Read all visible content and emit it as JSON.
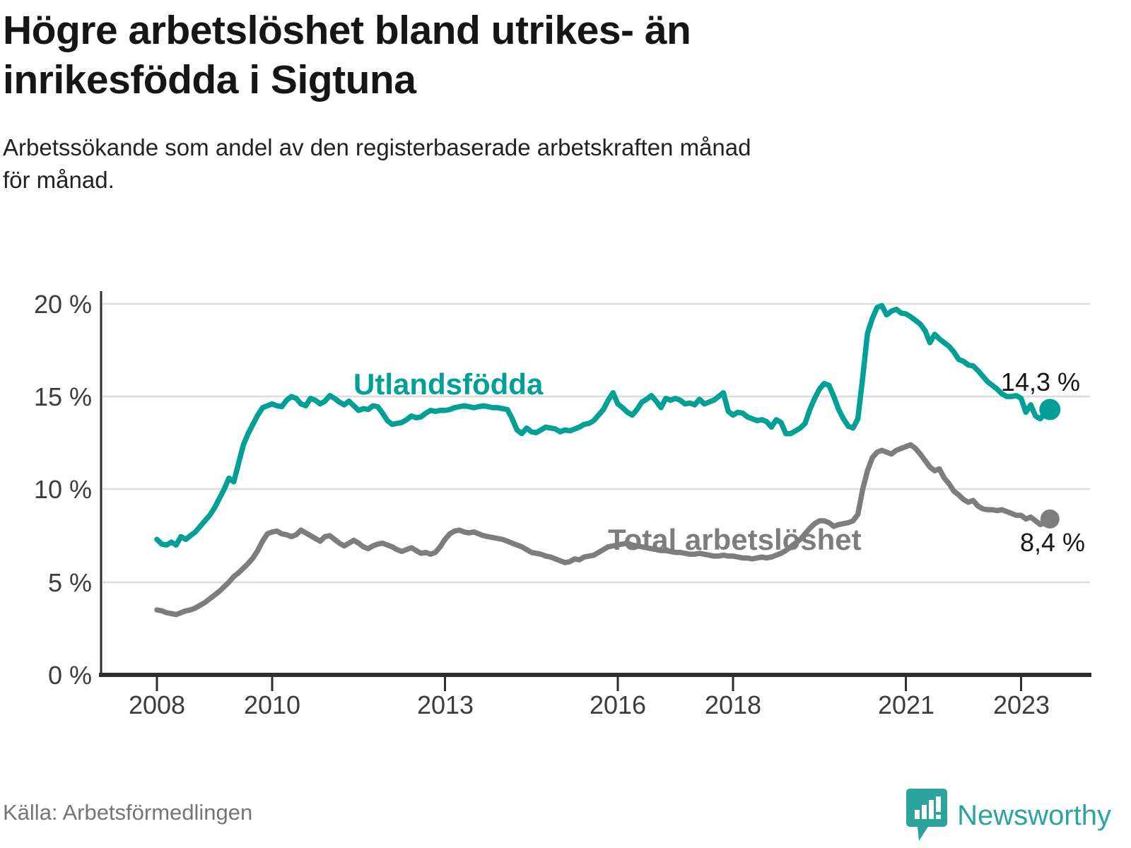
{
  "header": {
    "title_lines": [
      "Högre arbetslöshet bland utrikes- än",
      "inrikesfödda i Sigtuna"
    ],
    "subtitle_lines": [
      "Arbetssökande som andel av den registerbaserade arbetskraften månad",
      "för månad."
    ]
  },
  "footer": {
    "source": "Källa: Arbetsförmedlingen",
    "brand": "Newsworthy"
  },
  "colors": {
    "teal_line": "#00a096",
    "gray_line": "#7d7d7d",
    "brand_teal": "#2ca49e",
    "gridline": "#dcdcdc",
    "axis": "#2e2e2e"
  },
  "chart_data": {
    "type": "line",
    "title": "Högre arbetslöshet bland utrikes- än inrikesfödda i Sigtuna",
    "subtitle": "Arbetssökande som andel av den registerbaserade arbetskraften månad för månad.",
    "x_unit": "month",
    "x_start": "2008-01",
    "x_end": "2023-07",
    "ylim": [
      0,
      20
    ],
    "grid": "horizontal",
    "y_ticks": [
      {
        "label": "0 %",
        "value": 0
      },
      {
        "label": "5 %",
        "value": 5
      },
      {
        "label": "10 %",
        "value": 10
      },
      {
        "label": "15 %",
        "value": 15
      },
      {
        "label": "20 %",
        "value": 20
      }
    ],
    "x_ticks": [
      {
        "label": "2008",
        "year": 2008
      },
      {
        "label": "2010",
        "year": 2010
      },
      {
        "label": "2013",
        "year": 2013
      },
      {
        "label": "2016",
        "year": 2016
      },
      {
        "label": "2018",
        "year": 2018
      },
      {
        "label": "2021",
        "year": 2021
      },
      {
        "label": "2023",
        "year": 2023
      }
    ],
    "series": [
      {
        "name": "Utlandsfödda",
        "color": "#00a096",
        "end_label": "14,3 %",
        "end_value": 14.3,
        "values": [
          7.3,
          7.05,
          7.0,
          7.15,
          7.0,
          7.45,
          7.3,
          7.5,
          7.7,
          8.0,
          8.3,
          8.6,
          9.0,
          9.5,
          10.0,
          10.6,
          10.4,
          11.4,
          12.4,
          13.0,
          13.5,
          14.0,
          14.4,
          14.5,
          14.6,
          14.5,
          14.45,
          14.8,
          15.0,
          14.9,
          14.6,
          14.5,
          14.9,
          14.8,
          14.6,
          14.75,
          15.05,
          14.9,
          14.7,
          14.55,
          14.75,
          14.5,
          14.25,
          14.35,
          14.3,
          14.5,
          14.45,
          14.1,
          13.7,
          13.5,
          13.55,
          13.6,
          13.75,
          13.95,
          13.85,
          13.9,
          14.1,
          14.25,
          14.2,
          14.25,
          14.25,
          14.3,
          14.4,
          14.45,
          14.5,
          14.45,
          14.4,
          14.45,
          14.5,
          14.45,
          14.4,
          14.4,
          14.35,
          14.3,
          13.8,
          13.2,
          13.0,
          13.3,
          13.1,
          13.05,
          13.2,
          13.35,
          13.3,
          13.25,
          13.1,
          13.2,
          13.15,
          13.25,
          13.35,
          13.5,
          13.55,
          13.7,
          14.0,
          14.3,
          14.8,
          15.2,
          14.6,
          14.4,
          14.15,
          14.0,
          14.3,
          14.7,
          14.85,
          15.05,
          14.75,
          14.4,
          14.9,
          14.8,
          14.9,
          14.8,
          14.6,
          14.65,
          14.55,
          14.85,
          14.6,
          14.7,
          14.8,
          15.0,
          15.2,
          14.2,
          14.0,
          14.15,
          14.1,
          13.9,
          13.8,
          13.7,
          13.75,
          13.65,
          13.35,
          13.75,
          13.6,
          13.0,
          13.0,
          13.15,
          13.3,
          13.55,
          14.3,
          14.9,
          15.4,
          15.7,
          15.6,
          15.0,
          14.3,
          13.8,
          13.4,
          13.3,
          13.8,
          16.0,
          18.4,
          19.2,
          19.8,
          19.9,
          19.4,
          19.6,
          19.7,
          19.5,
          19.45,
          19.3,
          19.1,
          18.9,
          18.55,
          17.9,
          18.35,
          18.1,
          17.9,
          17.7,
          17.4,
          17.0,
          16.9,
          16.7,
          16.65,
          16.4,
          16.1,
          15.8,
          15.6,
          15.4,
          15.15,
          15.0,
          15.0,
          15.05,
          14.9,
          14.15,
          14.55,
          13.95,
          13.8,
          14.1,
          14.3
        ]
      },
      {
        "name": "Total arbetslöshet",
        "color": "#7d7d7d",
        "end_label": "8,4 %",
        "end_value": 8.4,
        "values": [
          3.5,
          3.45,
          3.35,
          3.3,
          3.25,
          3.35,
          3.45,
          3.5,
          3.6,
          3.75,
          3.9,
          4.1,
          4.3,
          4.5,
          4.75,
          5.0,
          5.3,
          5.5,
          5.75,
          6.0,
          6.3,
          6.7,
          7.2,
          7.6,
          7.7,
          7.75,
          7.6,
          7.55,
          7.45,
          7.55,
          7.8,
          7.65,
          7.5,
          7.35,
          7.2,
          7.45,
          7.5,
          7.3,
          7.1,
          6.95,
          7.1,
          7.25,
          7.1,
          6.9,
          6.8,
          6.95,
          7.05,
          7.1,
          7.0,
          6.9,
          6.75,
          6.65,
          6.75,
          6.85,
          6.7,
          6.55,
          6.6,
          6.5,
          6.6,
          6.9,
          7.3,
          7.6,
          7.75,
          7.8,
          7.7,
          7.65,
          7.7,
          7.6,
          7.5,
          7.45,
          7.4,
          7.35,
          7.3,
          7.2,
          7.1,
          7.0,
          6.9,
          6.75,
          6.6,
          6.55,
          6.5,
          6.4,
          6.35,
          6.25,
          6.15,
          6.05,
          6.1,
          6.25,
          6.2,
          6.35,
          6.4,
          6.45,
          6.6,
          6.75,
          6.9,
          6.95,
          7.0,
          7.05,
          7.1,
          7.0,
          6.95,
          6.9,
          6.85,
          6.8,
          6.75,
          6.7,
          6.7,
          6.65,
          6.6,
          6.6,
          6.55,
          6.5,
          6.5,
          6.55,
          6.5,
          6.45,
          6.4,
          6.4,
          6.45,
          6.4,
          6.4,
          6.35,
          6.3,
          6.3,
          6.25,
          6.3,
          6.35,
          6.3,
          6.35,
          6.45,
          6.55,
          6.7,
          6.9,
          7.1,
          7.3,
          7.6,
          7.9,
          8.15,
          8.3,
          8.3,
          8.2,
          8.0,
          8.1,
          8.15,
          8.2,
          8.3,
          8.65,
          10.0,
          11.0,
          11.7,
          12.0,
          12.1,
          12.0,
          11.9,
          12.1,
          12.2,
          12.3,
          12.4,
          12.2,
          11.9,
          11.55,
          11.2,
          11.0,
          11.1,
          10.6,
          10.3,
          9.9,
          9.7,
          9.45,
          9.3,
          9.4,
          9.1,
          8.95,
          8.9,
          8.9,
          8.85,
          8.9,
          8.8,
          8.7,
          8.6,
          8.6,
          8.4,
          8.5,
          8.3,
          8.1,
          8.2,
          8.4
        ]
      }
    ],
    "legend_position": "inline-labels"
  }
}
